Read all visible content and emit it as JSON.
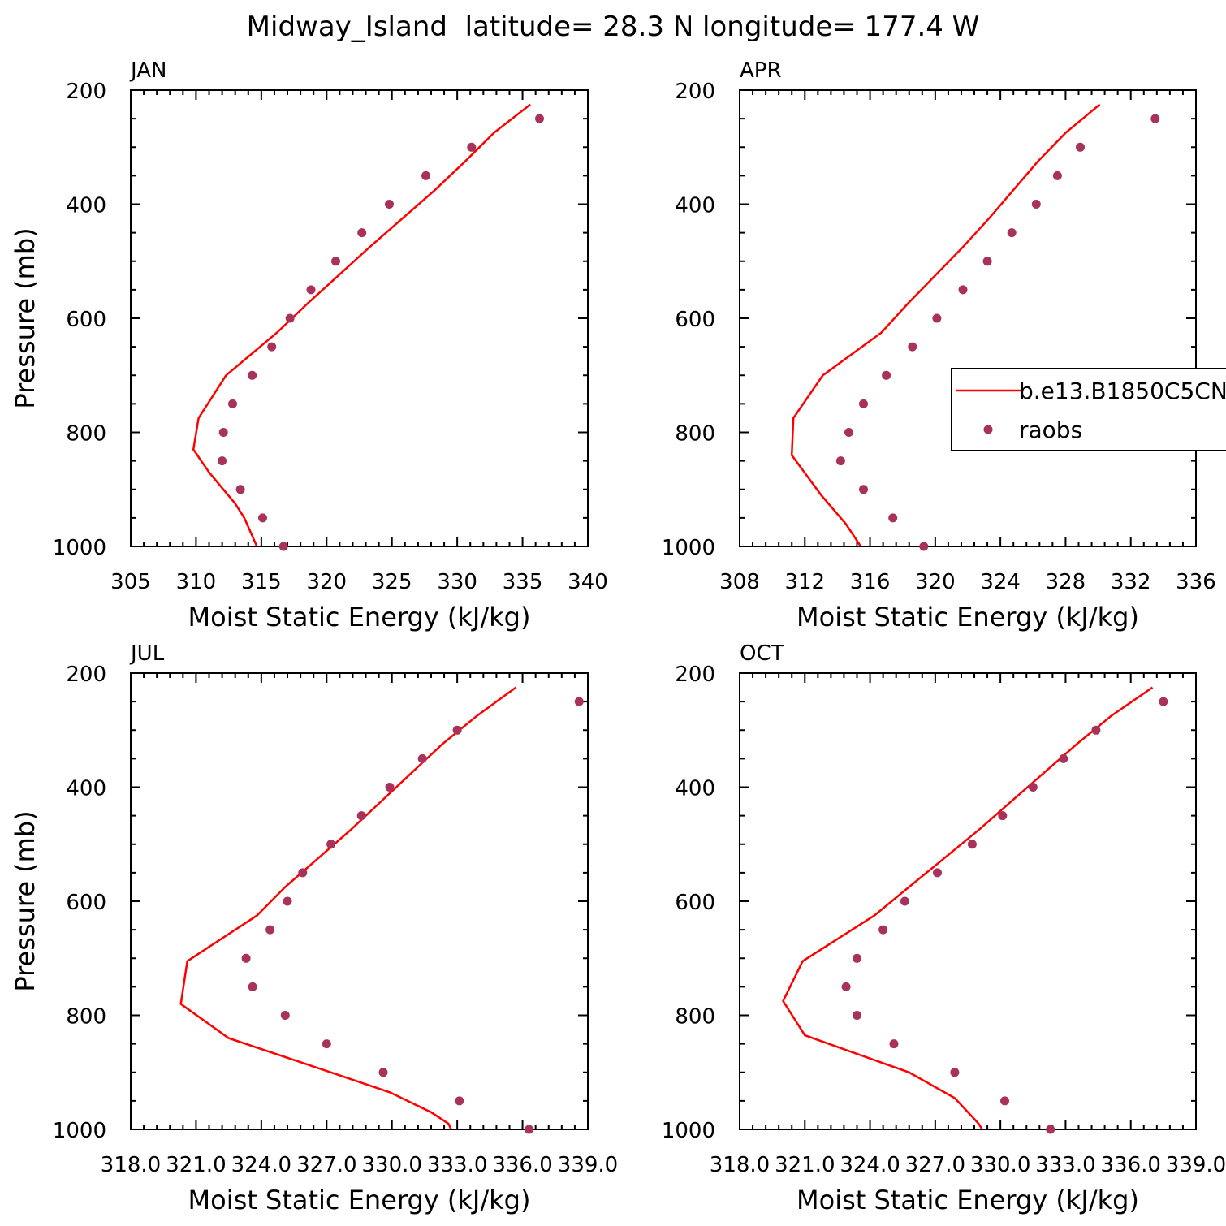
{
  "title": "Midway_Island  latitude= 28.3 N longitude= 177.4 W",
  "colors": {
    "model": "#ff0000",
    "obs": "#a8325a",
    "axis": "#000000"
  },
  "legend": {
    "entries": [
      {
        "label": "b.e13.B1850C5CN",
        "style": "line"
      },
      {
        "label": "raobs",
        "style": "marker"
      }
    ]
  },
  "chart_data": [
    {
      "type": "line",
      "panel": "JAN",
      "xlabel": "Moist Static Energy (kJ/kg)",
      "ylabel": "Pressure (mb)",
      "xlim": [
        305,
        340
      ],
      "ylim": [
        1000,
        200
      ],
      "xticks": [
        305,
        310,
        315,
        320,
        325,
        330,
        335,
        340
      ],
      "xtick_labels": [
        "305",
        "310",
        "315",
        "320",
        "325",
        "330",
        "335",
        "340"
      ],
      "yticks": [
        200,
        400,
        600,
        800,
        1000
      ],
      "ytick_labels": [
        "200",
        "400",
        "600",
        "800",
        "1000"
      ],
      "series": [
        {
          "name": "b.e13.B1850C5CN",
          "style": "line",
          "p": [
            225,
            275,
            325,
            375,
            425,
            475,
            525,
            575,
            625,
            700,
            775,
            830,
            870,
            925,
            950,
            1007
          ],
          "x": [
            335.6,
            332.8,
            330.6,
            328.3,
            325.8,
            323.3,
            320.9,
            318.5,
            316.2,
            312.3,
            310.2,
            309.8,
            311.0,
            313.0,
            313.7,
            314.8
          ]
        },
        {
          "name": "raobs",
          "style": "marker",
          "p": [
            250,
            300,
            350,
            400,
            450,
            500,
            550,
            600,
            650,
            700,
            750,
            800,
            850,
            900,
            950,
            1000
          ],
          "x": [
            336.3,
            331.1,
            327.6,
            324.8,
            322.7,
            320.7,
            318.8,
            317.2,
            315.8,
            314.3,
            312.8,
            312.1,
            312.0,
            313.4,
            315.1,
            316.7
          ]
        }
      ]
    },
    {
      "type": "line",
      "panel": "APR",
      "xlabel": "Moist Static Energy (kJ/kg)",
      "ylabel": "",
      "xlim": [
        308,
        336
      ],
      "ylim": [
        1000,
        200
      ],
      "xticks": [
        308,
        312,
        316,
        320,
        324,
        328,
        332,
        336
      ],
      "xtick_labels": [
        "308",
        "312",
        "316",
        "320",
        "324",
        "328",
        "332",
        "336"
      ],
      "yticks": [
        200,
        400,
        600,
        800,
        1000
      ],
      "ytick_labels": [
        "200",
        "400",
        "600",
        "800",
        "1000"
      ],
      "series": [
        {
          "name": "b.e13.B1850C5CN",
          "style": "line",
          "p": [
            225,
            275,
            325,
            375,
            425,
            475,
            525,
            575,
            625,
            700,
            775,
            840,
            875,
            910,
            960,
            1007
          ],
          "x": [
            330.1,
            328.0,
            326.3,
            324.8,
            323.3,
            321.7,
            320.0,
            318.3,
            316.7,
            313.1,
            311.3,
            311.2,
            312.1,
            313.0,
            314.5,
            315.6
          ]
        },
        {
          "name": "raobs",
          "style": "marker",
          "p": [
            250,
            300,
            350,
            400,
            450,
            500,
            550,
            600,
            650,
            700,
            750,
            800,
            850,
            900,
            950,
            1000
          ],
          "x": [
            333.5,
            328.9,
            327.5,
            326.2,
            324.7,
            323.2,
            321.7,
            320.1,
            318.6,
            317.0,
            315.6,
            314.7,
            314.2,
            315.6,
            317.4,
            319.3
          ]
        }
      ]
    },
    {
      "type": "line",
      "panel": "JUL",
      "xlabel": "Moist Static Energy (kJ/kg)",
      "ylabel": "Pressure (mb)",
      "xlim": [
        318,
        339
      ],
      "ylim": [
        1000,
        200
      ],
      "xticks": [
        318,
        321,
        324,
        327,
        330,
        333,
        336,
        339
      ],
      "xtick_labels": [
        "318.0",
        "321.0",
        "324.0",
        "327.0",
        "330.0",
        "333.0",
        "336.0",
        "339.0"
      ],
      "yticks": [
        200,
        400,
        600,
        800,
        1000
      ],
      "ytick_labels": [
        "200",
        "400",
        "600",
        "800",
        "1000"
      ],
      "series": [
        {
          "name": "b.e13.B1850C5CN",
          "style": "line",
          "p": [
            225,
            275,
            325,
            375,
            425,
            475,
            525,
            575,
            625,
            705,
            780,
            840,
            900,
            935,
            970,
            990,
            1015
          ],
          "x": [
            335.7,
            333.9,
            332.3,
            330.9,
            329.5,
            328.1,
            326.6,
            325.1,
            323.8,
            320.6,
            320.3,
            322.5,
            327.2,
            329.9,
            331.8,
            332.6,
            332.9
          ]
        },
        {
          "name": "raobs",
          "style": "marker",
          "p": [
            250,
            300,
            350,
            400,
            450,
            500,
            550,
            600,
            650,
            700,
            750,
            800,
            850,
            900,
            950,
            1000
          ],
          "x": [
            338.6,
            333.0,
            331.4,
            329.9,
            328.6,
            327.2,
            325.9,
            325.2,
            324.4,
            323.3,
            323.6,
            325.1,
            327.0,
            329.6,
            333.1,
            336.3
          ]
        }
      ]
    },
    {
      "type": "line",
      "panel": "OCT",
      "xlabel": "Moist Static Energy (kJ/kg)",
      "ylabel": "",
      "xlim": [
        318,
        339
      ],
      "ylim": [
        1000,
        200
      ],
      "xticks": [
        318,
        321,
        324,
        327,
        330,
        333,
        336,
        339
      ],
      "xtick_labels": [
        "318.0",
        "321.0",
        "324.0",
        "327.0",
        "330.0",
        "333.0",
        "336.0",
        "339.0"
      ],
      "yticks": [
        200,
        400,
        600,
        800,
        1000
      ],
      "ytick_labels": [
        "200",
        "400",
        "600",
        "800",
        "1000"
      ],
      "series": [
        {
          "name": "b.e13.B1850C5CN",
          "style": "line",
          "p": [
            225,
            275,
            325,
            375,
            425,
            475,
            525,
            575,
            625,
            705,
            775,
            835,
            900,
            945,
            990,
            1015
          ],
          "x": [
            337.0,
            335.1,
            333.5,
            332.0,
            330.5,
            329.0,
            327.4,
            325.8,
            324.2,
            320.9,
            320.0,
            321.0,
            325.8,
            327.9,
            329.0,
            329.4
          ]
        },
        {
          "name": "raobs",
          "style": "marker",
          "p": [
            250,
            300,
            350,
            400,
            450,
            500,
            550,
            600,
            650,
            700,
            750,
            800,
            850,
            900,
            950,
            1000
          ],
          "x": [
            337.5,
            334.4,
            332.9,
            331.5,
            330.1,
            328.7,
            327.1,
            325.6,
            324.6,
            323.4,
            322.9,
            323.4,
            325.1,
            327.9,
            330.2,
            332.3
          ]
        }
      ]
    }
  ]
}
